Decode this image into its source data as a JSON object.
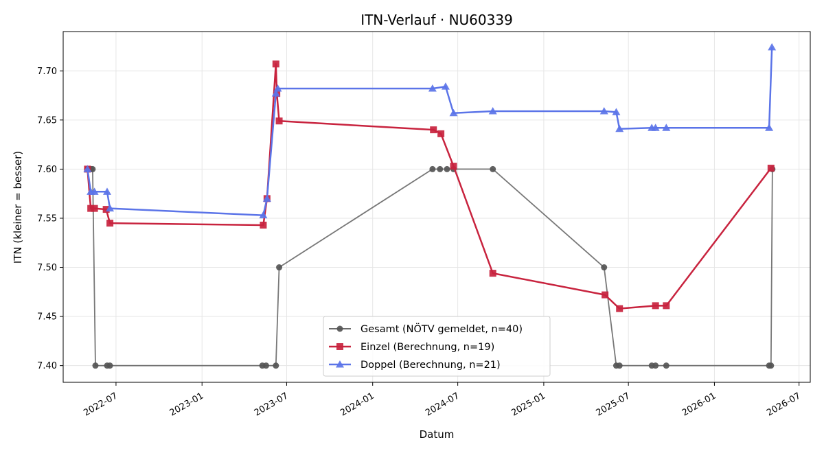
{
  "chart_data": {
    "type": "line",
    "title": "ITN-Verlauf · NU60339",
    "xlabel": "Datum",
    "ylabel": "ITN  (kleiner = besser)",
    "x_axis_type": "date",
    "xlim": [
      "2022-03-10",
      "2026-07-25"
    ],
    "ylim": [
      7.383,
      7.74
    ],
    "grid": true,
    "legend_position": "lower-center",
    "x_ticks": [
      "2022-07",
      "2023-01",
      "2023-07",
      "2024-01",
      "2024-07",
      "2025-01",
      "2025-07",
      "2026-01",
      "2026-07"
    ],
    "y_ticks": [
      "7.40",
      "7.45",
      "7.50",
      "7.55",
      "7.60",
      "7.65",
      "7.70"
    ],
    "series": [
      {
        "name": "Gesamt (NÖTV gemeldet, n=40)",
        "color": "#555555",
        "marker": "circle",
        "points": [
          [
            "2022-05-01",
            7.6
          ],
          [
            "2022-05-05",
            7.6
          ],
          [
            "2022-05-09",
            7.6
          ],
          [
            "2022-05-12",
            7.6
          ],
          [
            "2022-05-18",
            7.4
          ],
          [
            "2022-06-12",
            7.4
          ],
          [
            "2022-06-18",
            7.4
          ],
          [
            "2023-05-10",
            7.4
          ],
          [
            "2023-05-18",
            7.4
          ],
          [
            "2023-06-08",
            7.4
          ],
          [
            "2023-06-15",
            7.5
          ],
          [
            "2024-05-08",
            7.6
          ],
          [
            "2024-05-24",
            7.6
          ],
          [
            "2024-06-08",
            7.6
          ],
          [
            "2024-06-22",
            7.6
          ],
          [
            "2024-09-14",
            7.6
          ],
          [
            "2025-05-10",
            7.5
          ],
          [
            "2025-06-05",
            7.4
          ],
          [
            "2025-06-12",
            7.4
          ],
          [
            "2025-08-20",
            7.4
          ],
          [
            "2025-08-28",
            7.4
          ],
          [
            "2025-09-20",
            7.4
          ],
          [
            "2026-04-28",
            7.4
          ],
          [
            "2026-05-02",
            7.4
          ],
          [
            "2026-05-05",
            7.6
          ]
        ]
      },
      {
        "name": "Einzel (Berechnung, n=19)",
        "color": "#c8233e",
        "marker": "square",
        "points": [
          [
            "2022-05-01",
            7.6
          ],
          [
            "2022-05-08",
            7.56
          ],
          [
            "2022-05-16",
            7.56
          ],
          [
            "2022-06-10",
            7.559
          ],
          [
            "2022-06-18",
            7.545
          ],
          [
            "2023-05-12",
            7.543
          ],
          [
            "2023-05-20",
            7.57
          ],
          [
            "2023-06-08",
            7.707
          ],
          [
            "2023-06-10",
            7.677
          ],
          [
            "2023-06-15",
            7.649
          ],
          [
            "2024-05-10",
            7.64
          ],
          [
            "2024-05-26",
            7.636
          ],
          [
            "2024-06-22",
            7.603
          ],
          [
            "2024-09-14",
            7.494
          ],
          [
            "2025-05-12",
            7.472
          ],
          [
            "2025-06-12",
            7.458
          ],
          [
            "2025-08-28",
            7.461
          ],
          [
            "2025-09-20",
            7.461
          ],
          [
            "2026-05-02",
            7.601
          ]
        ]
      },
      {
        "name": "Doppel (Berechnung, n=21)",
        "color": "#5b74e8",
        "marker": "triangle",
        "points": [
          [
            "2022-05-01",
            7.6
          ],
          [
            "2022-05-08",
            7.577
          ],
          [
            "2022-05-16",
            7.577
          ],
          [
            "2022-06-12",
            7.577
          ],
          [
            "2022-06-18",
            7.56
          ],
          [
            "2023-05-12",
            7.553
          ],
          [
            "2023-05-20",
            7.57
          ],
          [
            "2023-06-08",
            7.677
          ],
          [
            "2023-06-12",
            7.682
          ],
          [
            "2024-05-08",
            7.682
          ],
          [
            "2024-06-05",
            7.684
          ],
          [
            "2024-06-22",
            7.657
          ],
          [
            "2024-09-14",
            7.659
          ],
          [
            "2025-05-10",
            7.659
          ],
          [
            "2025-06-05",
            7.658
          ],
          [
            "2025-06-12",
            7.641
          ],
          [
            "2025-08-20",
            7.642
          ],
          [
            "2025-08-28",
            7.642
          ],
          [
            "2025-09-20",
            7.642
          ],
          [
            "2026-04-28",
            7.642
          ],
          [
            "2026-05-04",
            7.724
          ]
        ]
      }
    ]
  }
}
